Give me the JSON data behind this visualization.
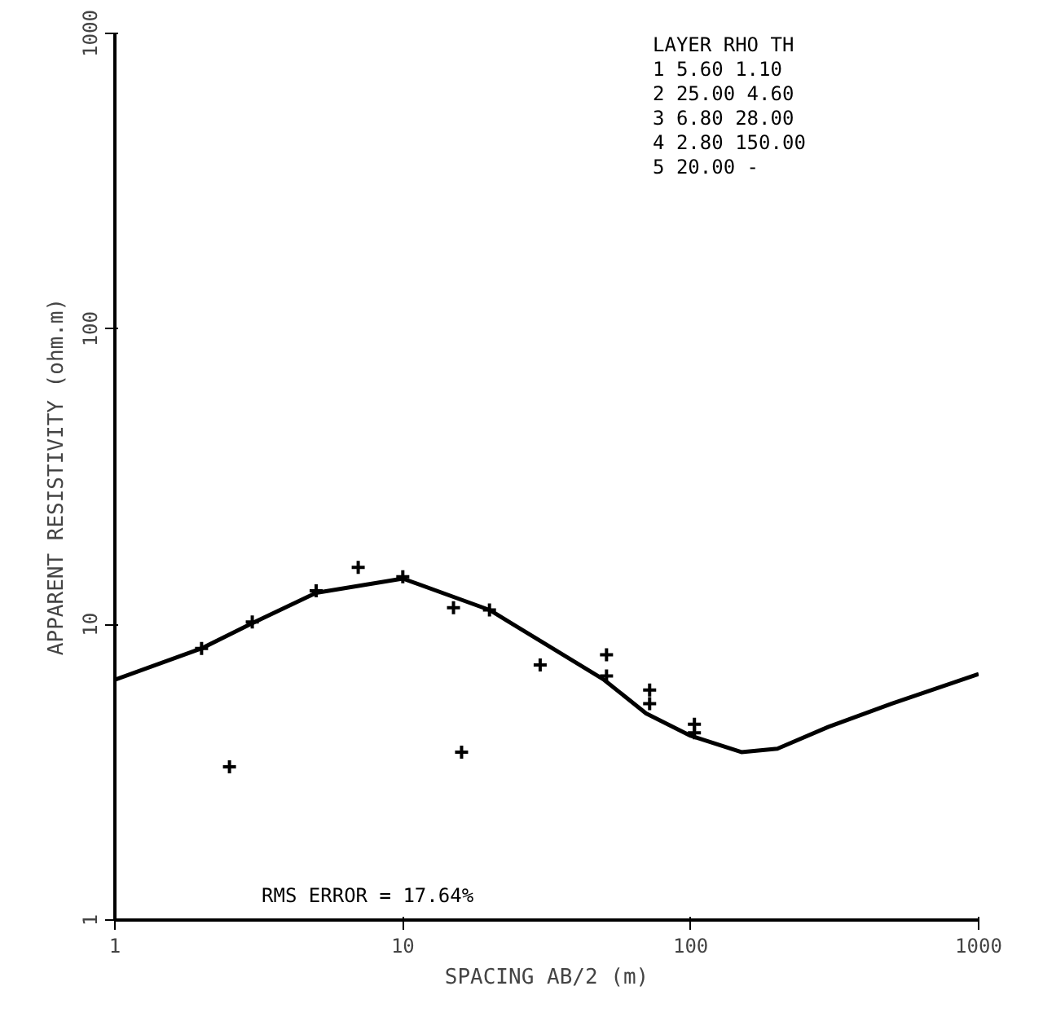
{
  "chart_data": {
    "type": "line",
    "xlabel": "SPACING AB/2 (m)",
    "ylabel": "APPARENT RESISTIVITY (ohm.m)",
    "log": "xy",
    "xlim": [
      1,
      1000
    ],
    "ylim": [
      1,
      1000
    ],
    "xticks": [
      1,
      10,
      100,
      1000
    ],
    "yticks": [
      1,
      10,
      100,
      1000
    ],
    "grid": false,
    "series": [
      {
        "color": "#000000",
        "marker": "none",
        "line_style": "solid",
        "x": [
          1,
          2,
          3,
          5,
          10,
          20,
          30,
          50,
          70,
          100,
          150,
          200,
          300,
          500,
          1000
        ],
        "values": [
          6.5,
          8.3,
          10.1,
          12.8,
          14.3,
          11.2,
          8.8,
          6.5,
          5.0,
          4.2,
          3.7,
          3.8,
          4.5,
          5.4,
          6.8
        ]
      },
      {
        "type": "scatter",
        "color": "#000000",
        "marker": "cross",
        "x": [
          2,
          3,
          5,
          7,
          10,
          15,
          20,
          30,
          51,
          51,
          72,
          72,
          103,
          103,
          2.5,
          16
        ],
        "values": [
          8.3,
          10.2,
          13,
          15.6,
          14.5,
          11.4,
          11.2,
          7.3,
          7.9,
          6.7,
          6.0,
          5.4,
          4.6,
          4.3,
          3.3,
          3.7
        ]
      }
    ],
    "annotations": [
      "LAYER   RHO     TH",
      "  1     5.60    1.10",
      "  2    25.00    4.60",
      "  3     6.80   28.00",
      "  4     2.80  150.00",
      "  5    20.00    -",
      "RMS ERROR =    17.64%"
    ]
  }
}
